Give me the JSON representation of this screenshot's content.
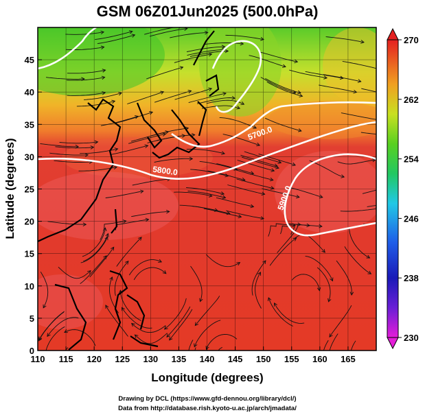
{
  "title": "GSM 06Z01Jun2025 (500.0hPa)",
  "chart_data": {
    "type": "map",
    "field": "temperature/height at 500.0hPa with wind streamlines",
    "xlabel": "Longitude (degrees)",
    "ylabel": "Latitude  (degrees)",
    "xlim": [
      110,
      170
    ],
    "ylim": [
      0,
      50
    ],
    "x_ticks": [
      110,
      115,
      120,
      125,
      130,
      135,
      140,
      145,
      150,
      155,
      160,
      165
    ],
    "y_ticks": [
      0,
      5,
      10,
      15,
      20,
      25,
      30,
      35,
      40,
      45
    ],
    "colorbar": {
      "min": 230,
      "max": 270,
      "ticks": [
        230,
        238,
        246,
        254,
        262,
        270
      ]
    },
    "contour_labels": [
      {
        "text": "5800.0",
        "lon": 133.5,
        "lat": 30.4
      },
      {
        "text": "5700.0",
        "lon": 149,
        "lat": 36
      },
      {
        "text": "5900.0",
        "lon": 156.5,
        "lat": 26
      }
    ]
  },
  "credits": {
    "line1": "Drawing by DCL (https://www.gfd-dennou.org/library/dcl/)",
    "line2": "Data from http://database.rish.kyoto-u.ac.jp/arch/jmadata/"
  }
}
